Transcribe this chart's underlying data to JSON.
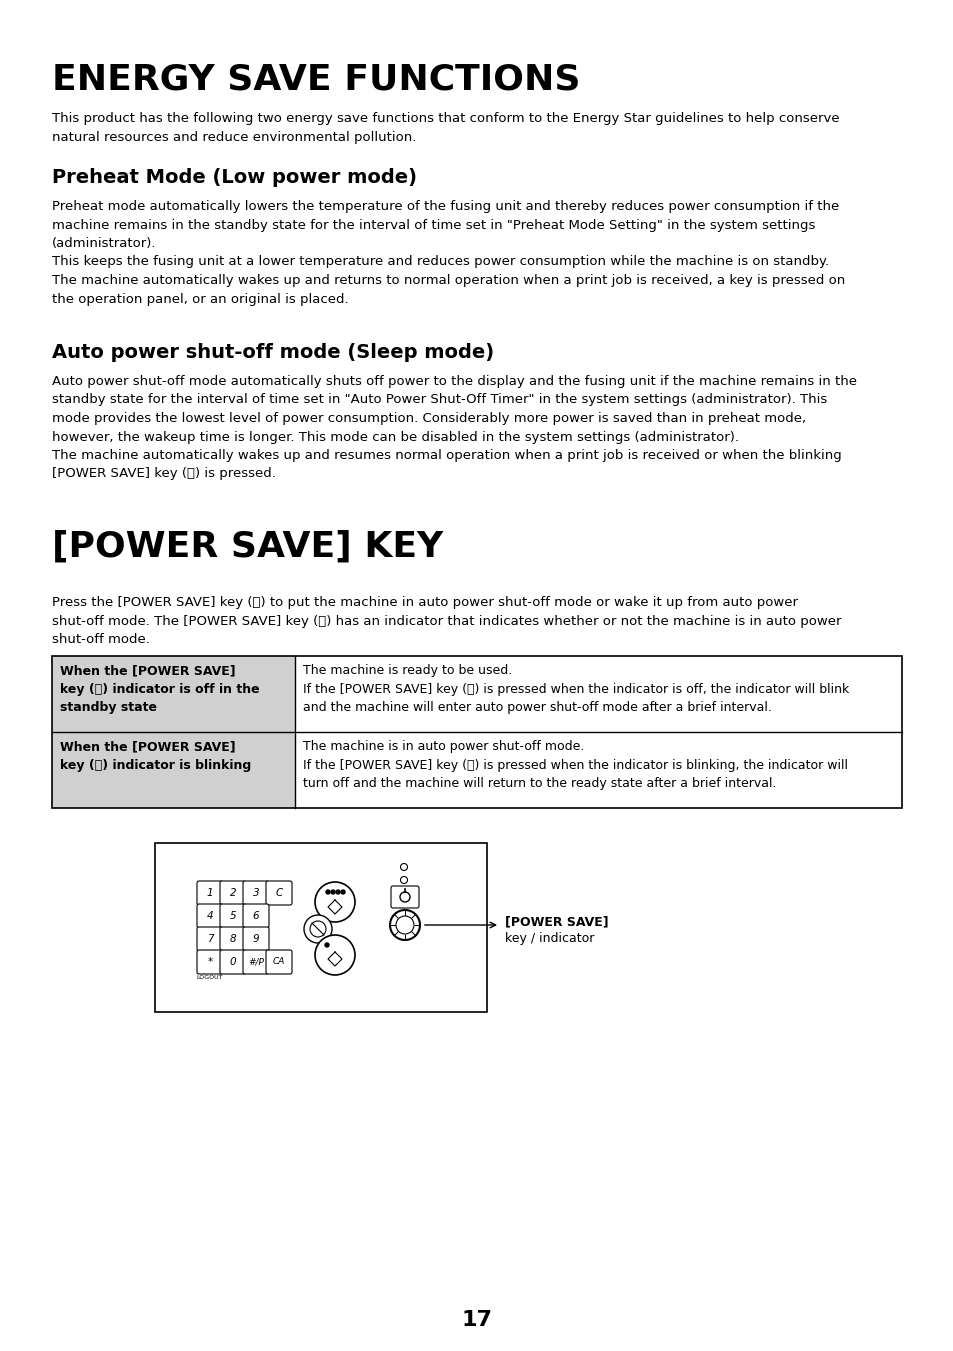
{
  "title": "ENERGY SAVE FUNCTIONS",
  "intro_text": "This product has the following two energy save functions that conform to the Energy Star guidelines to help conserve\nnatural resources and reduce environmental pollution.",
  "section1_title": "Preheat Mode (Low power mode)",
  "section1_text": "Preheat mode automatically lowers the temperature of the fusing unit and thereby reduces power consumption if the\nmachine remains in the standby state for the interval of time set in \"Preheat Mode Setting\" in the system settings\n(administrator).\nThis keeps the fusing unit at a lower temperature and reduces power consumption while the machine is on standby.\nThe machine automatically wakes up and returns to normal operation when a print job is received, a key is pressed on\nthe operation panel, or an original is placed.",
  "section2_title": "Auto power shut-off mode (Sleep mode)",
  "section2_text": "Auto power shut-off mode automatically shuts off power to the display and the fusing unit if the machine remains in the\nstandby state for the interval of time set in \"Auto Power Shut-Off Timer\" in the system settings (administrator). This\nmode provides the lowest level of power consumption. Considerably more power is saved than in preheat mode,\nhowever, the wakeup time is longer. This mode can be disabled in the system settings (administrator).\nThe machine automatically wakes up and resumes normal operation when a print job is received or when the blinking\n[POWER SAVE] key (Ⓢ) is pressed.",
  "section3_title": "[POWER SAVE] KEY",
  "section3_intro": "Press the [POWER SAVE] key (Ⓢ) to put the machine in auto power shut-off mode or wake it up from auto power\nshut-off mode. The [POWER SAVE] key (Ⓢ) has an indicator that indicates whether or not the machine is in auto power\nshut-off mode.",
  "table_row1_left": "When the [POWER SAVE]\nkey (Ⓢ) indicator is off in the\nstandby state",
  "table_row1_right": "The machine is ready to be used.\nIf the [POWER SAVE] key (Ⓢ) is pressed when the indicator is off, the indicator will blink\nand the machine will enter auto power shut-off mode after a brief interval.",
  "table_row2_left": "When the [POWER SAVE]\nkey (Ⓢ) indicator is blinking",
  "table_row2_right": "The machine is in auto power shut-off mode.\nIf the [POWER SAVE] key (Ⓢ) is pressed when the indicator is blinking, the indicator will\nturn off and the machine will return to the ready state after a brief interval.",
  "page_number": "17",
  "bg_color": "#ffffff",
  "text_color": "#000000"
}
